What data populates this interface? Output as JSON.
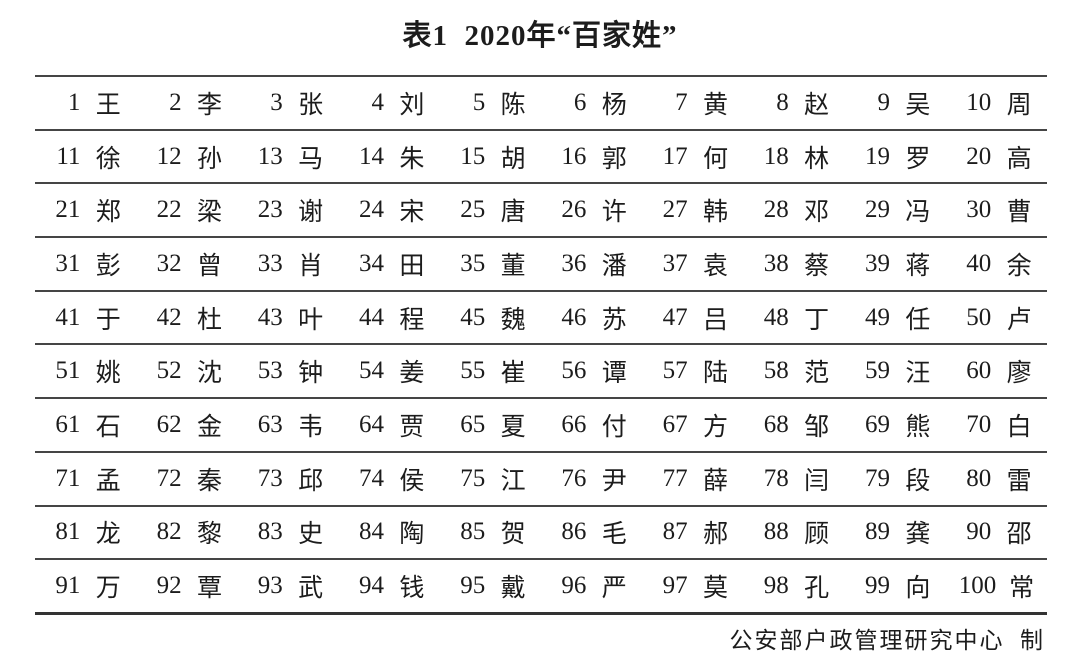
{
  "title": "表1  2020年“百家姓”",
  "table": {
    "rows": [
      [
        [
          "1",
          "王"
        ],
        [
          "2",
          "李"
        ],
        [
          "3",
          "张"
        ],
        [
          "4",
          "刘"
        ],
        [
          "5",
          "陈"
        ],
        [
          "6",
          "杨"
        ],
        [
          "7",
          "黄"
        ],
        [
          "8",
          "赵"
        ],
        [
          "9",
          "吴"
        ],
        [
          "10",
          "周"
        ]
      ],
      [
        [
          "11",
          "徐"
        ],
        [
          "12",
          "孙"
        ],
        [
          "13",
          "马"
        ],
        [
          "14",
          "朱"
        ],
        [
          "15",
          "胡"
        ],
        [
          "16",
          "郭"
        ],
        [
          "17",
          "何"
        ],
        [
          "18",
          "林"
        ],
        [
          "19",
          "罗"
        ],
        [
          "20",
          "高"
        ]
      ],
      [
        [
          "21",
          "郑"
        ],
        [
          "22",
          "梁"
        ],
        [
          "23",
          "谢"
        ],
        [
          "24",
          "宋"
        ],
        [
          "25",
          "唐"
        ],
        [
          "26",
          "许"
        ],
        [
          "27",
          "韩"
        ],
        [
          "28",
          "邓"
        ],
        [
          "29",
          "冯"
        ],
        [
          "30",
          "曹"
        ]
      ],
      [
        [
          "31",
          "彭"
        ],
        [
          "32",
          "曾"
        ],
        [
          "33",
          "肖"
        ],
        [
          "34",
          "田"
        ],
        [
          "35",
          "董"
        ],
        [
          "36",
          "潘"
        ],
        [
          "37",
          "袁"
        ],
        [
          "38",
          "蔡"
        ],
        [
          "39",
          "蒋"
        ],
        [
          "40",
          "余"
        ]
      ],
      [
        [
          "41",
          "于"
        ],
        [
          "42",
          "杜"
        ],
        [
          "43",
          "叶"
        ],
        [
          "44",
          "程"
        ],
        [
          "45",
          "魏"
        ],
        [
          "46",
          "苏"
        ],
        [
          "47",
          "吕"
        ],
        [
          "48",
          "丁"
        ],
        [
          "49",
          "任"
        ],
        [
          "50",
          "卢"
        ]
      ],
      [
        [
          "51",
          "姚"
        ],
        [
          "52",
          "沈"
        ],
        [
          "53",
          "钟"
        ],
        [
          "54",
          "姜"
        ],
        [
          "55",
          "崔"
        ],
        [
          "56",
          "谭"
        ],
        [
          "57",
          "陆"
        ],
        [
          "58",
          "范"
        ],
        [
          "59",
          "汪"
        ],
        [
          "60",
          "廖"
        ]
      ],
      [
        [
          "61",
          "石"
        ],
        [
          "62",
          "金"
        ],
        [
          "63",
          "韦"
        ],
        [
          "64",
          "贾"
        ],
        [
          "65",
          "夏"
        ],
        [
          "66",
          "付"
        ],
        [
          "67",
          "方"
        ],
        [
          "68",
          "邹"
        ],
        [
          "69",
          "熊"
        ],
        [
          "70",
          "白"
        ]
      ],
      [
        [
          "71",
          "孟"
        ],
        [
          "72",
          "秦"
        ],
        [
          "73",
          "邱"
        ],
        [
          "74",
          "侯"
        ],
        [
          "75",
          "江"
        ],
        [
          "76",
          "尹"
        ],
        [
          "77",
          "薛"
        ],
        [
          "78",
          "闫"
        ],
        [
          "79",
          "段"
        ],
        [
          "80",
          "雷"
        ]
      ],
      [
        [
          "81",
          "龙"
        ],
        [
          "82",
          "黎"
        ],
        [
          "83",
          "史"
        ],
        [
          "84",
          "陶"
        ],
        [
          "85",
          "贺"
        ],
        [
          "86",
          "毛"
        ],
        [
          "87",
          "郝"
        ],
        [
          "88",
          "顾"
        ],
        [
          "89",
          "龚"
        ],
        [
          "90",
          "邵"
        ]
      ],
      [
        [
          "91",
          "万"
        ],
        [
          "92",
          "覃"
        ],
        [
          "93",
          "武"
        ],
        [
          "94",
          "钱"
        ],
        [
          "95",
          "戴"
        ],
        [
          "96",
          "严"
        ],
        [
          "97",
          "莫"
        ],
        [
          "98",
          "孔"
        ],
        [
          "99",
          "向"
        ],
        [
          "100",
          "常"
        ]
      ]
    ]
  },
  "footer": "公安部户政管理研究中心  制",
  "colors": {
    "background": "#ffffff",
    "text": "#1c1c1c",
    "rule": "#454545"
  }
}
